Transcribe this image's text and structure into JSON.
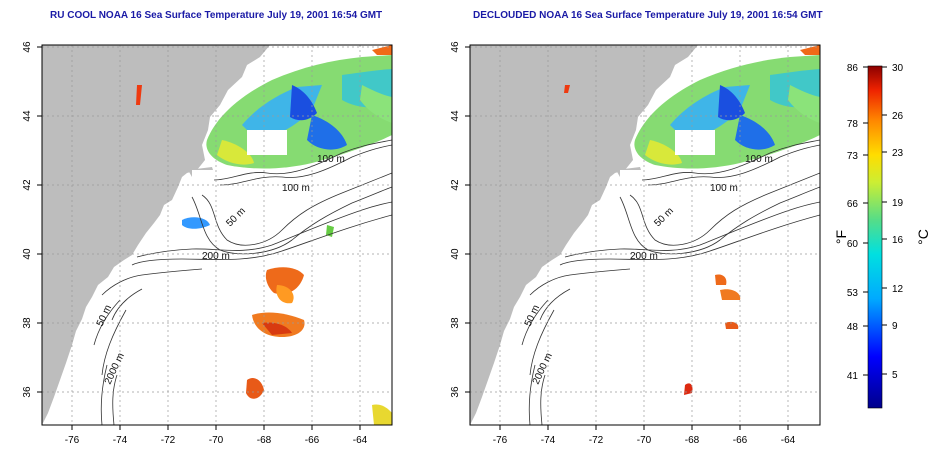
{
  "panels": [
    {
      "title": "RU COOL NOAA 16 Sea Surface Temperature July 19, 2001 16:54 GMT",
      "contour_labels": [
        "100 m",
        "100 m",
        "50 m",
        "200 m",
        "50 m",
        "2000 m"
      ]
    },
    {
      "title": "DECLOUDED NOAA 16 Sea Surface Temperature July 19, 2001 16:54 GMT",
      "contour_labels": [
        "100 m",
        "100 m",
        "50 m",
        "200 m",
        "50 m",
        "2000 m"
      ]
    }
  ],
  "axes": {
    "x_ticks": [
      "-76",
      "-74",
      "-72",
      "-70",
      "-68",
      "-66",
      "-64"
    ],
    "y_ticks": [
      "36",
      "38",
      "40",
      "42",
      "44",
      "46"
    ]
  },
  "colorbar": {
    "left_unit": "°F",
    "right_unit": "°C",
    "fahrenheit_ticks": [
      "86",
      "78",
      "73",
      "66",
      "60",
      "53",
      "48",
      "41"
    ],
    "celsius_ticks": [
      "30",
      "26",
      "23",
      "19",
      "16",
      "12",
      "9",
      "5"
    ]
  },
  "colors": {
    "land": "#bdbdbd",
    "title": "#1a1aa6",
    "grid": "#9a9a9a"
  }
}
